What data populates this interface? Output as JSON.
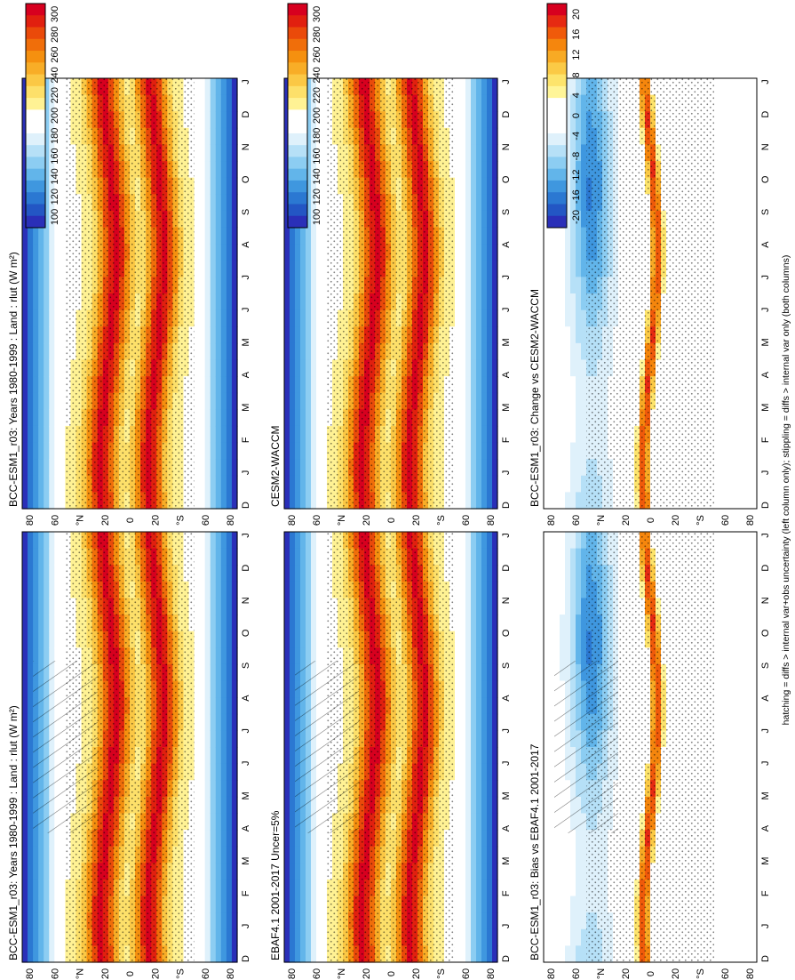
{
  "footer_note": "hatching = diffs > internal var+obs uncertainty (left column only); stippling = diffs > internal var only (both columns)",
  "colors": {
    "olr_scale": [
      "#d7001f",
      "#e1200f",
      "#ea4a0a",
      "#f06e0a",
      "#f5900f",
      "#f8ad27",
      "#fbc845",
      "#fde06a",
      "#fff294",
      "#ffffff",
      "#ffffff",
      "#dff1fb",
      "#b6e0f7",
      "#8ccdf2",
      "#62b5ea",
      "#3f97df",
      "#2b78d2",
      "#2356c4",
      "#2a2fb8"
    ],
    "diff_scale": [
      "#d7001f",
      "#e62a12",
      "#f05a0a",
      "#f5860d",
      "#f8aa24",
      "#fbca46",
      "#fde46c",
      "#fff598",
      "#ffffff",
      "#ffffff",
      "#ffffff",
      "#dff1fb",
      "#b6e0f7",
      "#8ccdf2",
      "#62b5ea",
      "#3f97df",
      "#2b78d2",
      "#2356c4",
      "#2a2fb8"
    ]
  },
  "chart_data": [
    {
      "type": "heatmap",
      "title": "BCC-ESM1_r03: Years 1980-1999 : Land : rlut (W m²)",
      "x": [
        "D",
        "J",
        "F",
        "M",
        "A",
        "M",
        "J",
        "J",
        "A",
        "S",
        "O",
        "N",
        "D",
        "J"
      ],
      "y": [
        "80",
        "60",
        "°N",
        "20",
        "0",
        "20",
        "°S",
        "60",
        "80"
      ],
      "legend": [
        "300",
        "280",
        "260",
        "240",
        "220",
        "200",
        "180",
        "160",
        "140",
        "120",
        "100"
      ],
      "palette": "olr",
      "hatching": true,
      "stippling": true
    },
    {
      "type": "heatmap",
      "title": "BCC-ESM1_r03: Years 1980-1999 : Land : rlut (W m²)",
      "x": [
        "D",
        "J",
        "F",
        "M",
        "A",
        "M",
        "J",
        "J",
        "A",
        "S",
        "O",
        "N",
        "D",
        "J"
      ],
      "y": [
        "80",
        "60",
        "°N",
        "20",
        "0",
        "20",
        "°S",
        "60",
        "80"
      ],
      "legend": [
        "300",
        "280",
        "260",
        "240",
        "220",
        "200",
        "180",
        "160",
        "140",
        "120",
        "100"
      ],
      "palette": "olr",
      "hatching": false,
      "stippling": true
    },
    {
      "type": "heatmap",
      "title": "EBAF4.1 2001-2017 Uncer=5%",
      "x": [
        "D",
        "J",
        "F",
        "M",
        "A",
        "M",
        "J",
        "J",
        "A",
        "S",
        "O",
        "N",
        "D",
        "J"
      ],
      "y": [
        "80",
        "60",
        "°N",
        "20",
        "0",
        "20",
        "°S",
        "60",
        "80"
      ],
      "legend": [
        "300",
        "280",
        "260",
        "240",
        "220",
        "200",
        "180",
        "160",
        "140",
        "120",
        "100"
      ],
      "palette": "olr",
      "hatching": true,
      "stippling": true
    },
    {
      "type": "heatmap",
      "title": "CESM2-WACCM",
      "x": [
        "D",
        "J",
        "F",
        "M",
        "A",
        "M",
        "J",
        "J",
        "A",
        "S",
        "O",
        "N",
        "D",
        "J"
      ],
      "y": [
        "80",
        "60",
        "°N",
        "20",
        "0",
        "20",
        "°S",
        "60",
        "80"
      ],
      "legend": [
        "300",
        "280",
        "260",
        "240",
        "220",
        "200",
        "180",
        "160",
        "140",
        "120",
        "100"
      ],
      "palette": "olr",
      "hatching": false,
      "stippling": true
    },
    {
      "type": "heatmap",
      "title": "BCC-ESM1_r03: Bias vs EBAF4.1 2001-2017",
      "x": [
        "D",
        "J",
        "F",
        "M",
        "A",
        "M",
        "J",
        "J",
        "A",
        "S",
        "O",
        "N",
        "D",
        "J"
      ],
      "y": [
        "80",
        "60",
        "°N",
        "20",
        "0",
        "20",
        "°S",
        "60",
        "80"
      ],
      "legend": [
        "20",
        "16",
        "12",
        "8",
        "4",
        "0",
        "-4",
        "-8",
        "-12",
        "-16",
        "-20"
      ],
      "palette": "diff",
      "hatching": true,
      "stippling": true
    },
    {
      "type": "heatmap",
      "title": "BCC-ESM1_r03: Change vs CESM2-WACCM",
      "x": [
        "D",
        "J",
        "F",
        "M",
        "A",
        "M",
        "J",
        "J",
        "A",
        "S",
        "O",
        "N",
        "D",
        "J"
      ],
      "y": [
        "80",
        "60",
        "°N",
        "20",
        "0",
        "20",
        "°S",
        "60",
        "80"
      ],
      "legend": [
        "20",
        "16",
        "12",
        "8",
        "4",
        "0",
        "-4",
        "-8",
        "-12",
        "-16",
        "-20"
      ],
      "palette": "diff",
      "hatching": false,
      "stippling": true
    }
  ]
}
